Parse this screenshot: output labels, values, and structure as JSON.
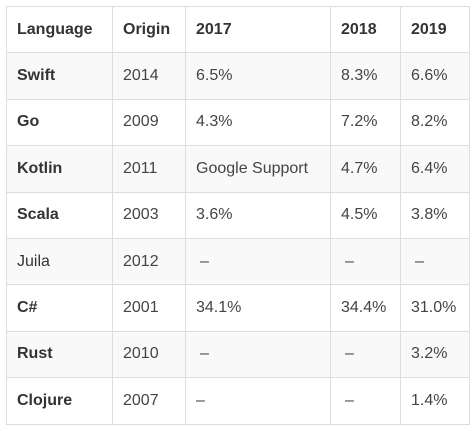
{
  "table": {
    "headers": [
      "Language",
      "Origin",
      "2017",
      "2018",
      "2019"
    ],
    "rows": [
      {
        "language": "Swift",
        "origin": "2014",
        "y2017": "6.5%",
        "y2018": "8.3%",
        "y2019": "6.6%"
      },
      {
        "language": "Go",
        "origin": "2009",
        "y2017": "4.3%",
        "y2018": "7.2%",
        "y2019": "8.2%"
      },
      {
        "language": "Kotlin",
        "origin": "2011",
        "y2017": "Google Support",
        "y2018": "4.7%",
        "y2019": "6.4%"
      },
      {
        "language": "Scala",
        "origin": "2003",
        "y2017": "3.6%",
        "y2018": "4.5%",
        "y2019": "3.8%"
      },
      {
        "language": "Juila",
        "origin": "2012",
        "y2017": "–",
        "y2018": "–",
        "y2019": "–"
      },
      {
        "language": "C#",
        "origin": "2001",
        "y2017": "34.1%",
        "y2018": "34.4%",
        "y2019": "31.0%"
      },
      {
        "language": "Rust",
        "origin": "2010",
        "y2017": "–",
        "y2018": "–",
        "y2019": "3.2%"
      },
      {
        "language": "Clojure",
        "origin": "2007",
        "y2017": "–",
        "y2018": "–",
        "y2019": "1.4%"
      }
    ]
  }
}
